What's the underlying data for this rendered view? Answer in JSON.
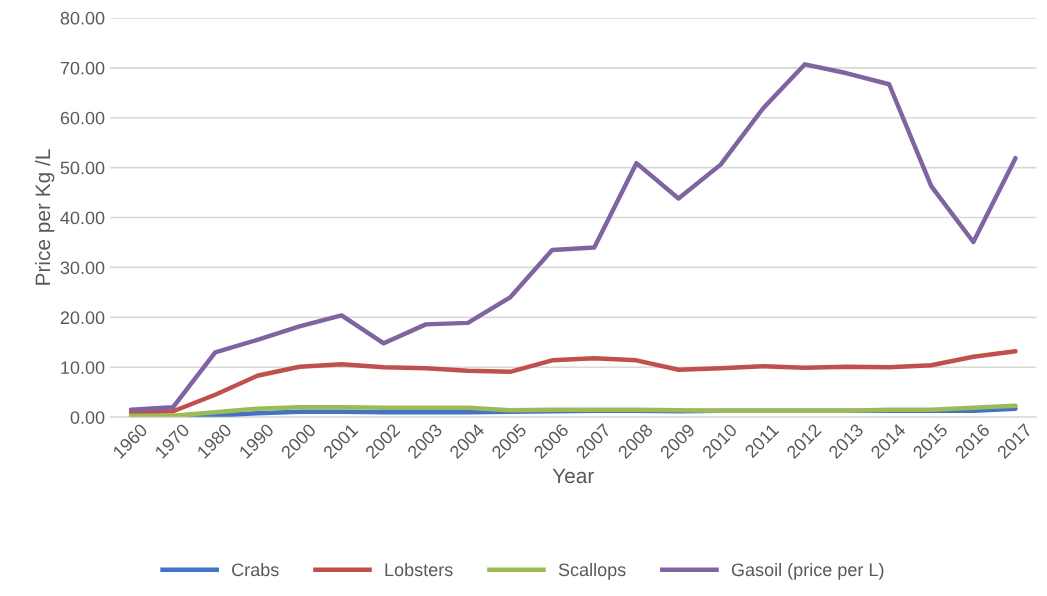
{
  "chart_data": {
    "type": "line",
    "xlabel": "Year",
    "ylabel": "Price per Kg /L",
    "categories": [
      "1960",
      "1970",
      "1980",
      "1990",
      "2000",
      "2001",
      "2002",
      "2003",
      "2004",
      "2005",
      "2006",
      "2007",
      "2008",
      "2009",
      "2010",
      "2011",
      "2012",
      "2013",
      "2014",
      "2015",
      "2016",
      "2017"
    ],
    "series": [
      {
        "name": "Crabs",
        "color": "#4472c4",
        "values": [
          0.1,
          0.1,
          0.3,
          0.8,
          1.1,
          1.1,
          1.0,
          1.0,
          1.0,
          1.1,
          1.2,
          1.3,
          1.3,
          1.2,
          1.3,
          1.3,
          1.3,
          1.3,
          1.3,
          1.3,
          1.3,
          1.7
        ]
      },
      {
        "name": "Lobsters",
        "color": "#c0504d",
        "values": [
          1.0,
          1.2,
          4.5,
          8.3,
          10.1,
          10.6,
          10.0,
          9.8,
          9.3,
          9.1,
          11.4,
          11.8,
          11.4,
          9.5,
          9.8,
          10.2,
          9.9,
          10.1,
          10.0,
          10.4,
          12.1,
          13.2
        ]
      },
      {
        "name": "Scallops",
        "color": "#9bbb59",
        "values": [
          0.3,
          0.3,
          1.0,
          1.7,
          2.0,
          2.0,
          1.9,
          1.9,
          1.9,
          1.4,
          1.5,
          1.5,
          1.5,
          1.4,
          1.3,
          1.3,
          1.3,
          1.3,
          1.5,
          1.5,
          1.9,
          2.3
        ]
      },
      {
        "name": "Gasoil (price per L)",
        "color": "#8064a2",
        "values": [
          1.5,
          2.0,
          13.0,
          15.5,
          18.2,
          20.4,
          14.8,
          18.6,
          18.9,
          24.0,
          33.5,
          34.0,
          50.9,
          43.8,
          50.6,
          61.8,
          70.7,
          68.9,
          66.7,
          46.3,
          35.1,
          51.9
        ]
      }
    ],
    "ylim": [
      0,
      80
    ],
    "yticks": [
      {
        "value": 0,
        "label": "0.00"
      },
      {
        "value": 10,
        "label": "10.00"
      },
      {
        "value": 20,
        "label": "20.00"
      },
      {
        "value": 30,
        "label": "30.00"
      },
      {
        "value": 40,
        "label": "40.00"
      },
      {
        "value": 50,
        "label": "50.00"
      },
      {
        "value": 60,
        "label": "60.00"
      },
      {
        "value": 70,
        "label": "70.00"
      },
      {
        "value": 80,
        "label": "80.00"
      }
    ],
    "grid": "y",
    "legend": "bottom",
    "marker": "none",
    "line_style": "solid"
  }
}
